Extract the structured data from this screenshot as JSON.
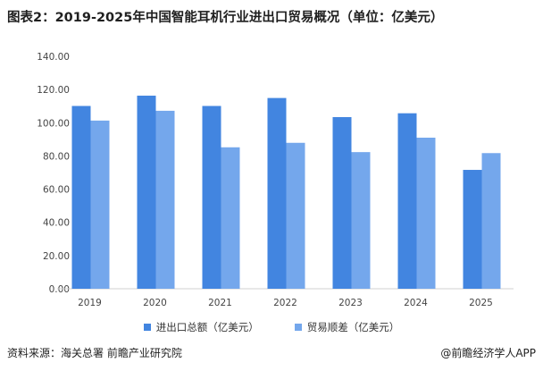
{
  "title": "图表2：2019-2025年中国智能耳机行业进出口贸易概况（单位：亿美元）",
  "chart_data": {
    "type": "bar",
    "title": "图表2：2019-2025年中国智能耳机行业进出口贸易概况（单位：亿美元）",
    "categories": [
      "2019",
      "2020",
      "2021",
      "2022",
      "2023",
      "2024",
      "2025"
    ],
    "series": [
      {
        "name": "进出口总额（亿美元）",
        "color": "#4285e0",
        "values": [
          110.1,
          116.3,
          110.1,
          114.9,
          103.4,
          105.7,
          71.6
        ]
      },
      {
        "name": "贸易顺差（亿美元）",
        "color": "#74a7ec",
        "values": [
          101.3,
          107.2,
          85.2,
          87.9,
          82.3,
          91.0,
          81.7
        ]
      }
    ],
    "ylim": [
      0,
      140
    ],
    "yticks": [
      "0.00",
      "20.00",
      "40.00",
      "60.00",
      "80.00",
      "100.00",
      "120.00",
      "140.00"
    ],
    "grid": false,
    "legend": "bottom"
  },
  "footer": {
    "source": "资料来源：海关总署  前瞻产业研究院",
    "brand": "@前瞻经济学人APP"
  }
}
